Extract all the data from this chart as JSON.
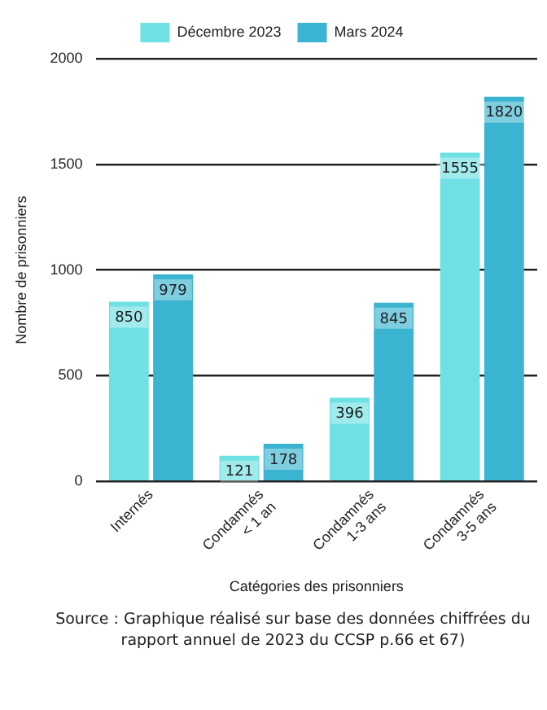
{
  "chart_data": {
    "type": "bar",
    "xlabel": "Catégories des prisonniers",
    "ylabel": "Nombre de prisonniers",
    "categories": [
      "Internés",
      "Condamnés < 1 an",
      "Condamnés 1-3 ans",
      "Condamnés 3-5 ans"
    ],
    "series": [
      {
        "name": "Décembre 2023",
        "color": "#6fe0e4",
        "values": [
          850,
          121,
          396,
          1555
        ]
      },
      {
        "name": "Mars 2024",
        "color": "#3ab4d0",
        "values": [
          979,
          178,
          845,
          1820
        ]
      }
    ],
    "ylim": [
      0,
      2000
    ],
    "yticks": [
      0,
      500,
      1000,
      1500,
      2000
    ],
    "grid": "y",
    "legend": "top",
    "data_labels": true,
    "annotations": [
      "Source : Graphique réalisé sur base des données chiffrées du rapport annuel de 2023 du CCSP p.66 et 67)"
    ]
  }
}
